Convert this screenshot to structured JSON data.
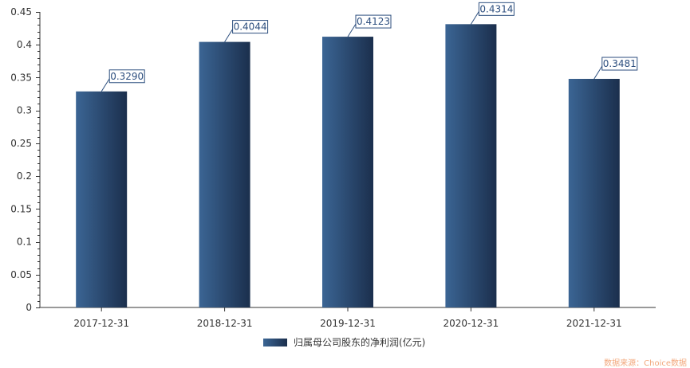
{
  "chart_data": {
    "type": "bar",
    "categories": [
      "2017-12-31",
      "2018-12-31",
      "2019-12-31",
      "2020-12-31",
      "2021-12-31"
    ],
    "series": [
      {
        "name": "归属母公司股东的净利润(亿元)",
        "values": [
          0.329,
          0.4044,
          0.4123,
          0.4314,
          0.3481
        ]
      }
    ],
    "data_labels": [
      "0.3290",
      "0.4044",
      "0.4123",
      "0.4314",
      "0.3481"
    ],
    "y_ticks": [
      "0",
      "0.05",
      "0.1",
      "0.15",
      "0.2",
      "0.25",
      "0.3",
      "0.35",
      "0.4",
      "0.45"
    ],
    "ylim": [
      0,
      0.45
    ],
    "grid": false,
    "legend_position": "bottom-center",
    "bar_color_light": "#3b6594",
    "bar_color_dark": "#1b2f4d",
    "label_color": "#2c4e7e"
  },
  "source": "数据来源：Choice数据"
}
